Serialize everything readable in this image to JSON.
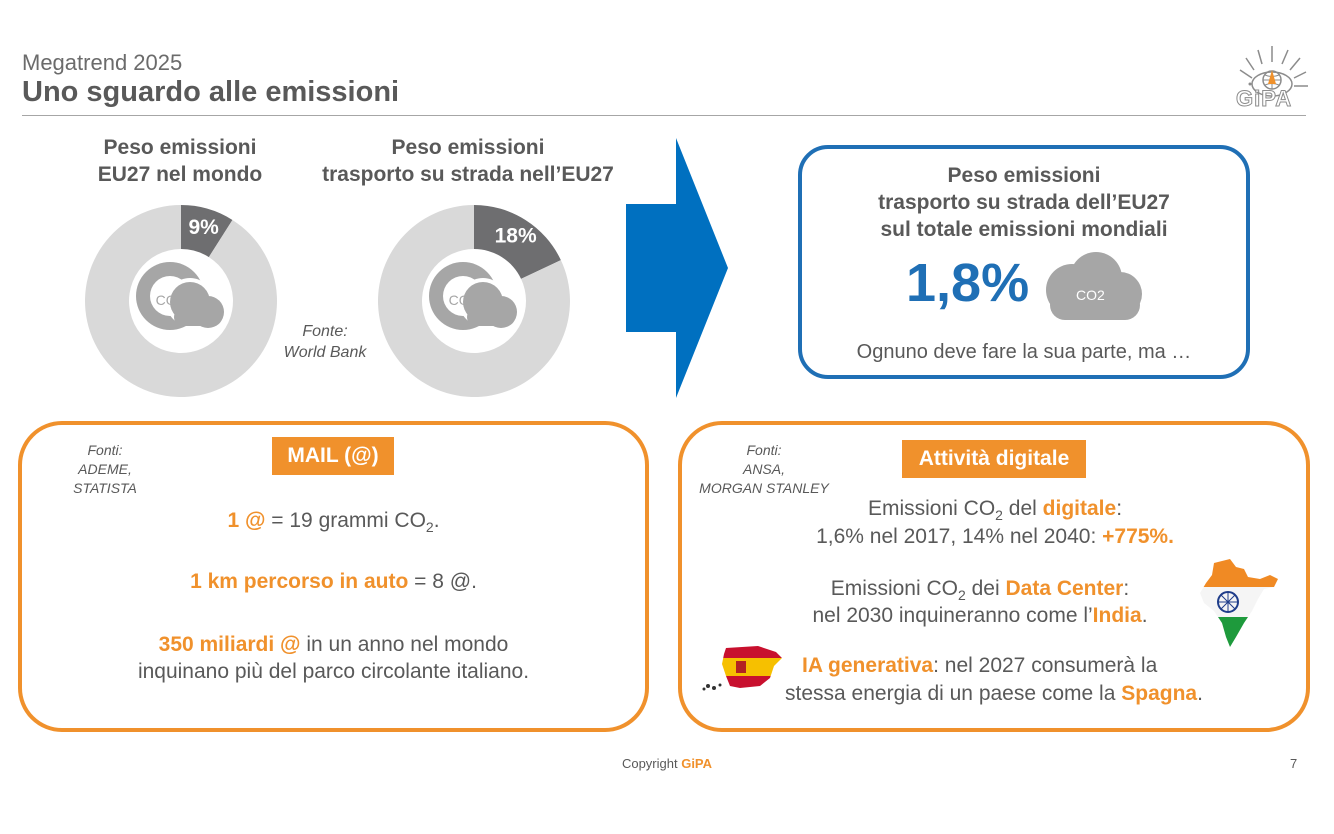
{
  "header": {
    "subtitle": "Megatrend 2025",
    "title": "Uno sguardo alle emissioni",
    "logo_text": "GiPA"
  },
  "chart_data": [
    {
      "type": "pie",
      "title_line1": "Peso emissioni",
      "title_line2": "EU27 nel mondo",
      "values": [
        9,
        91
      ],
      "highlight_label": "9%",
      "center_icon_text": "CO2",
      "colors": [
        "#6E6E70",
        "#D9D9D9"
      ]
    },
    {
      "type": "pie",
      "title_line1": "Peso emissioni",
      "title_line2": "trasporto su strada nell’EU27",
      "values": [
        18,
        82
      ],
      "highlight_label": "18%",
      "center_icon_text": "CO2",
      "colors": [
        "#6E6E70",
        "#D9D9D9"
      ]
    }
  ],
  "source_top": {
    "line1": "Fonte:",
    "line2": "World Bank"
  },
  "result_box": {
    "line1": "Peso emissioni",
    "line2": "trasporto su strada dell’EU27",
    "line3": "sul totale emissioni mondiali",
    "value": "1,8%",
    "icon_text": "CO2",
    "caption": "Ognuno deve fare la sua parte, ma …",
    "color": "#1F6FB5"
  },
  "mail_box": {
    "tag": "MAIL (@)",
    "sources": [
      "Fonti:",
      "ADEME,",
      "STATISTA"
    ],
    "l1_hl": "1 @",
    "l1_rest": " = 19 grammi CO",
    "l1_sub": "2",
    "l1_end": ".",
    "l2_hl": "1 km percorso in auto",
    "l2_rest": " = 8 @.",
    "l3_hl": "350 miliardi @",
    "l3_rest": " in un anno nel mondo",
    "l4": "inquinano più del parco circolante italiano."
  },
  "digital_box": {
    "tag": "Attività digitale",
    "sources": [
      "Fonti:",
      "ANSA,",
      "MORGAN STANLEY"
    ],
    "a1_pre": "Emissioni CO",
    "a1_sub": "2",
    "a1_mid": " del ",
    "a1_hl": "digitale",
    "a1_end": ":",
    "a2_pre": "1,6% nel 2017, 14% nel 2040: ",
    "a2_hl": "+775%.",
    "b1_pre": "Emissioni CO",
    "b1_sub": "2",
    "b1_mid": " dei ",
    "b1_hl": "Data Center",
    "b1_end": ":",
    "b2_pre": "nel 2030 inquineranno come l’",
    "b2_hl": "India",
    "b2_end": ".",
    "c1_hl": "IA generativa",
    "c1_rest": ": nel 2027 consumerà la",
    "c2_pre": "stessa energia di un paese come la ",
    "c2_hl": "Spagna",
    "c2_end": "."
  },
  "footer": {
    "copyright": "Copyright ",
    "brand": "GiPA",
    "page": "7"
  },
  "colors": {
    "accent_orange": "#F0912C",
    "accent_blue": "#1F6FB5",
    "arrow_blue": "#0070C0"
  }
}
